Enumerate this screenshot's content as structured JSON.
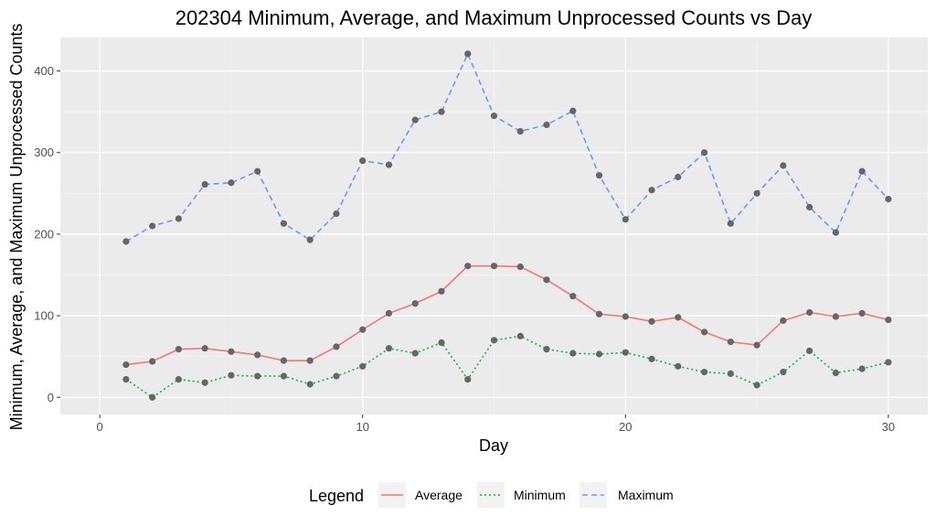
{
  "chart_data": {
    "type": "line",
    "title": "202304 Minimum, Average, and Maximum Unprocessed Counts vs Day",
    "xlabel": "Day",
    "ylabel": "Minimum, Average, and Maximum Unprocessed Counts",
    "xlim": [
      -1.5,
      31.5
    ],
    "ylim": [
      -21,
      441
    ],
    "x_ticks": [
      0,
      10,
      20,
      30
    ],
    "y_ticks": [
      0,
      100,
      200,
      300,
      400
    ],
    "grid": true,
    "point_color": "#666666",
    "panel_color": "#ebebeb",
    "legend_position": "bottom",
    "legend": {
      "title": "Legend",
      "entries": [
        "Average",
        "Minimum",
        "Maximum"
      ]
    },
    "x": [
      1,
      2,
      3,
      4,
      5,
      6,
      7,
      8,
      9,
      10,
      11,
      12,
      13,
      14,
      15,
      16,
      17,
      18,
      19,
      20,
      21,
      22,
      23,
      24,
      25,
      26,
      27,
      28,
      29,
      30
    ],
    "series": [
      {
        "name": "Average",
        "color": "#f8766d",
        "dash": "solid",
        "values": [
          40,
          44,
          59,
          60,
          56,
          52,
          45,
          45,
          62,
          83,
          103,
          115,
          130,
          161,
          161,
          160,
          144,
          124,
          102,
          99,
          93,
          98,
          80,
          68,
          64,
          94,
          104,
          99,
          103,
          95
        ]
      },
      {
        "name": "Minimum",
        "color": "#00ba38",
        "dash": "dotted",
        "values": [
          22,
          0,
          22,
          18,
          27,
          26,
          26,
          16,
          26,
          38,
          60,
          54,
          67,
          22,
          70,
          75,
          59,
          54,
          53,
          55,
          47,
          38,
          31,
          29,
          15,
          31,
          57,
          30,
          35,
          43
        ]
      },
      {
        "name": "Maximum",
        "color": "#619cff",
        "dash": "dashed",
        "values": [
          191,
          210,
          219,
          261,
          263,
          277,
          213,
          193,
          225,
          290,
          285,
          340,
          350,
          421,
          345,
          326,
          334,
          351,
          272,
          218,
          254,
          270,
          300,
          213,
          250,
          284,
          233,
          202,
          277,
          243
        ]
      }
    ]
  }
}
